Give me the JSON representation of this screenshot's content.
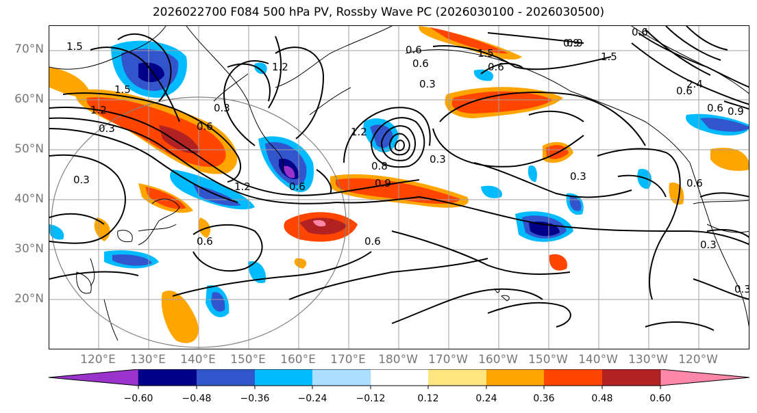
{
  "title": "2026022700 F084 500 hPa PV, Rossby Wave PC (2026030100 - 2026030500)",
  "map": {
    "lat_labels": [
      "70°N",
      "60°N",
      "50°N",
      "40°N",
      "30°N",
      "20°N"
    ],
    "lon_labels": [
      "120°E",
      "130°E",
      "140°E",
      "150°E",
      "160°E",
      "170°E",
      "180°W",
      "170°W",
      "160°W",
      "150°W",
      "140°W",
      "130°W",
      "120°W"
    ],
    "contour_labels": [
      "1.5",
      "1.5",
      "0.3",
      "1.2",
      "0.3",
      "0.6",
      "0.3",
      "1.2",
      "0.9",
      "0.6",
      "0.6",
      "0.3",
      "1.2",
      "1.5",
      "0.8",
      "0.9",
      "0.3",
      "0.6",
      "0.6",
      "0.6",
      "0.9",
      "0.3",
      "0.6",
      "0.6",
      "1.5",
      "2.4",
      "0.6",
      "0.9",
      "0.6",
      "0.3",
      "0.3",
      "1.2",
      "0.6"
    ],
    "colors": {
      "contour": "#000000",
      "circle": "#808080",
      "grid": "#a0a0a0",
      "coast": "#000000"
    }
  },
  "colorbar": {
    "tick_labels": [
      "−0.60",
      "−0.48",
      "−0.36",
      "−0.24",
      "−0.12",
      "0.12",
      "0.24",
      "0.36",
      "0.48",
      "0.60"
    ],
    "segments": [
      "#9933cc",
      "#000088",
      "#3355cc",
      "#00bbff",
      "#aaddff",
      "#ffffff",
      "#ffe680",
      "#ffa500",
      "#ff4500",
      "#b22222",
      "#ff88aa"
    ]
  }
}
